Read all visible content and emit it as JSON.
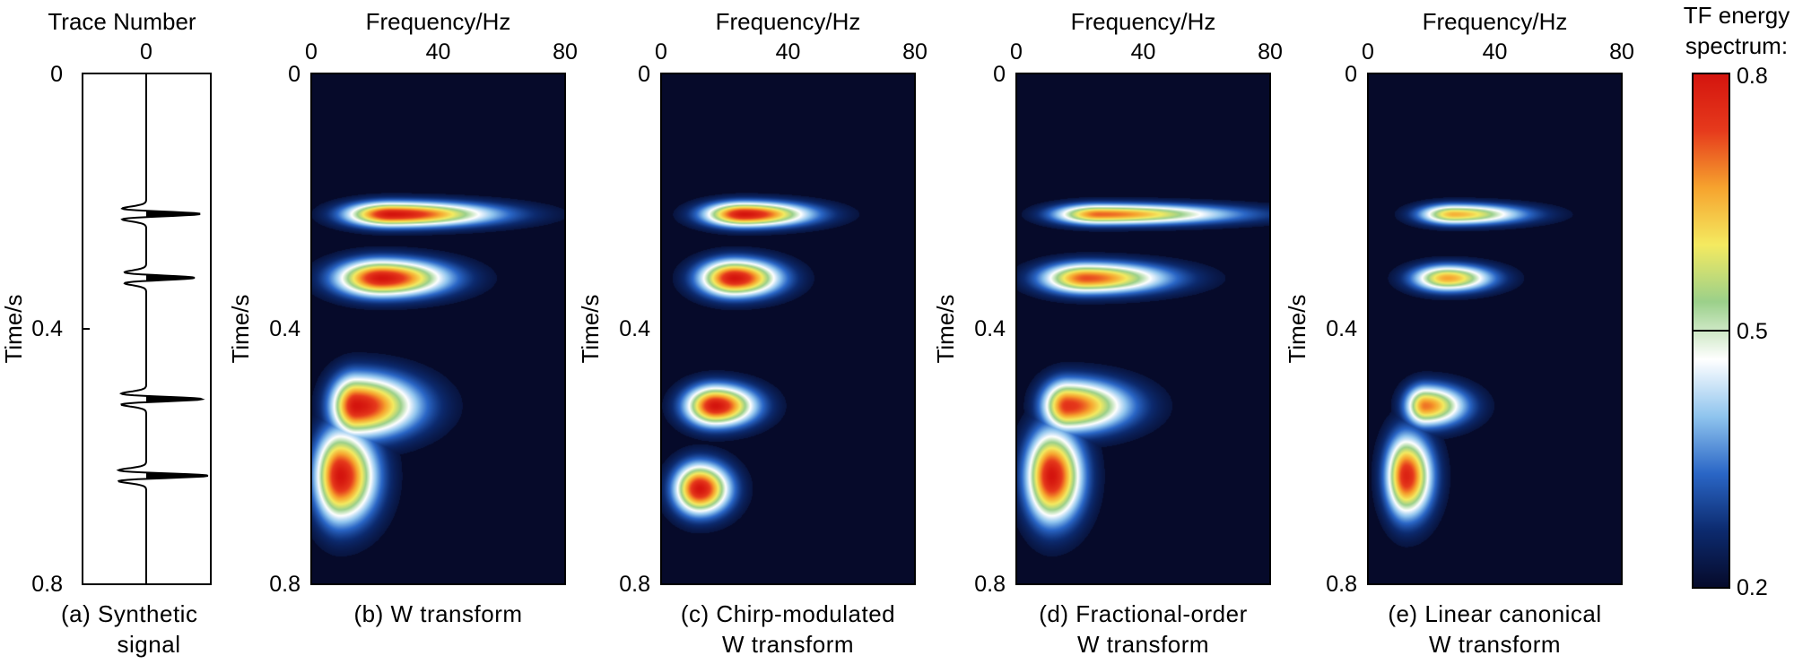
{
  "colors": {
    "background": "#060a2a",
    "colormap": [
      "#060a2a",
      "#0c2a6e",
      "#2a66c6",
      "#8fc4ee",
      "#ffffff",
      "#9bd08a",
      "#f4ea60",
      "#f6a32e",
      "#e63a1c",
      "#d4140e"
    ]
  },
  "panel_a": {
    "title": "Trace Number",
    "x_tick": "0",
    "y_ticks": [
      "0",
      "0.4",
      "0.8"
    ],
    "ylabel": "Time/s",
    "caption_line1": "(a)  Synthetic",
    "caption_line2": "signal"
  },
  "colorbar": {
    "title_line1": "TF energy",
    "title_line2": "spectrum:",
    "ticks": [
      "0.8",
      "0.5",
      "0.2"
    ],
    "range": [
      0.2,
      0.8
    ],
    "threshold": 0.5
  },
  "chart_data": [
    {
      "type": "line",
      "panel": "a",
      "title": "Trace Number",
      "ylabel": "Time/s",
      "ylim": [
        0,
        0.8
      ],
      "y_ticks": [
        0,
        0.4,
        0.8
      ],
      "x_ticks": [
        0
      ],
      "events": [
        {
          "time": 0.22,
          "amplitude": 1.0
        },
        {
          "time": 0.32,
          "amplitude": 0.9
        },
        {
          "time": 0.51,
          "amplitude": 0.9
        },
        {
          "time": 0.63,
          "amplitude": 1.0
        }
      ]
    },
    {
      "type": "heatmap",
      "panel": "b",
      "xlabel": "Frequency/Hz",
      "ylabel": "Time/s",
      "xlim": [
        0,
        80
      ],
      "ylim": [
        0,
        0.8
      ],
      "x_ticks": [
        0,
        40,
        80
      ],
      "y_ticks": [
        0,
        0.4,
        0.8
      ],
      "caption_line1": "(b)  W transform",
      "caption_line2": "",
      "blobs": [
        {
          "t": 0.22,
          "f": 25,
          "peak": 1.0,
          "sfl": 9,
          "sfr": 20,
          "st": 0.012
        },
        {
          "t": 0.32,
          "f": 22,
          "peak": 1.0,
          "sfl": 9,
          "sfr": 13,
          "st": 0.018
        },
        {
          "t": 0.52,
          "f": 14,
          "peak": 1.0,
          "sfl": 5,
          "sfr": 12,
          "st": 0.03
        },
        {
          "t": 0.63,
          "f": 9,
          "peak": 1.0,
          "sfl": 5,
          "sfr": 7,
          "st": 0.045
        }
      ]
    },
    {
      "type": "heatmap",
      "panel": "c",
      "xlabel": "Frequency/Hz",
      "ylabel": "Time/s",
      "xlim": [
        0,
        80
      ],
      "ylim": [
        0,
        0.8
      ],
      "x_ticks": [
        0,
        40,
        80
      ],
      "y_ticks": [
        0,
        0.4,
        0.8
      ],
      "caption_line1": "(c)  Chirp-modulated",
      "caption_line2": "W transform",
      "blobs": [
        {
          "t": 0.22,
          "f": 26,
          "peak": 1.0,
          "sfl": 8,
          "sfr": 13,
          "st": 0.012
        },
        {
          "t": 0.32,
          "f": 23,
          "peak": 1.0,
          "sfl": 7,
          "sfr": 9,
          "st": 0.018
        },
        {
          "t": 0.52,
          "f": 17,
          "peak": 1.0,
          "sfl": 6,
          "sfr": 8,
          "st": 0.02
        },
        {
          "t": 0.65,
          "f": 12,
          "peak": 1.0,
          "sfl": 5,
          "sfr": 6,
          "st": 0.025
        }
      ]
    },
    {
      "type": "heatmap",
      "panel": "d",
      "xlabel": "Frequency/Hz",
      "ylabel": "Time/s",
      "xlim": [
        0,
        80
      ],
      "ylim": [
        0,
        0.8
      ],
      "x_ticks": [
        0,
        40,
        80
      ],
      "y_ticks": [
        0,
        0.4,
        0.8
      ],
      "caption_line1": "(d)  Fractional-order",
      "caption_line2": "W transform",
      "blobs": [
        {
          "t": 0.22,
          "f": 26,
          "peak": 0.82,
          "sfl": 9,
          "sfr": 26,
          "st": 0.01
        },
        {
          "t": 0.32,
          "f": 22,
          "peak": 0.85,
          "sfl": 9,
          "sfr": 16,
          "st": 0.015
        },
        {
          "t": 0.52,
          "f": 16,
          "peak": 0.9,
          "sfl": 5,
          "sfr": 12,
          "st": 0.025
        },
        {
          "t": 0.63,
          "f": 11,
          "peak": 1.0,
          "sfl": 5,
          "sfr": 6,
          "st": 0.045
        }
      ]
    },
    {
      "type": "heatmap",
      "panel": "e",
      "xlabel": "Frequency/Hz",
      "ylabel": "Time/s",
      "xlim": [
        0,
        80
      ],
      "ylim": [
        0,
        0.8
      ],
      "x_ticks": [
        0,
        40,
        80
      ],
      "y_ticks": [
        0,
        0.4,
        0.8
      ],
      "caption_line1": "(e)  Linear canonical",
      "caption_line2": "W transform",
      "blobs": [
        {
          "t": 0.22,
          "f": 27,
          "peak": 0.72,
          "sfl": 7,
          "sfr": 14,
          "st": 0.01
        },
        {
          "t": 0.32,
          "f": 25,
          "peak": 0.74,
          "sfl": 7,
          "sfr": 9,
          "st": 0.013
        },
        {
          "t": 0.52,
          "f": 18,
          "peak": 0.8,
          "sfl": 4,
          "sfr": 8,
          "st": 0.02
        },
        {
          "t": 0.63,
          "f": 12,
          "peak": 0.95,
          "sfl": 4,
          "sfr": 5,
          "st": 0.04
        }
      ]
    }
  ]
}
